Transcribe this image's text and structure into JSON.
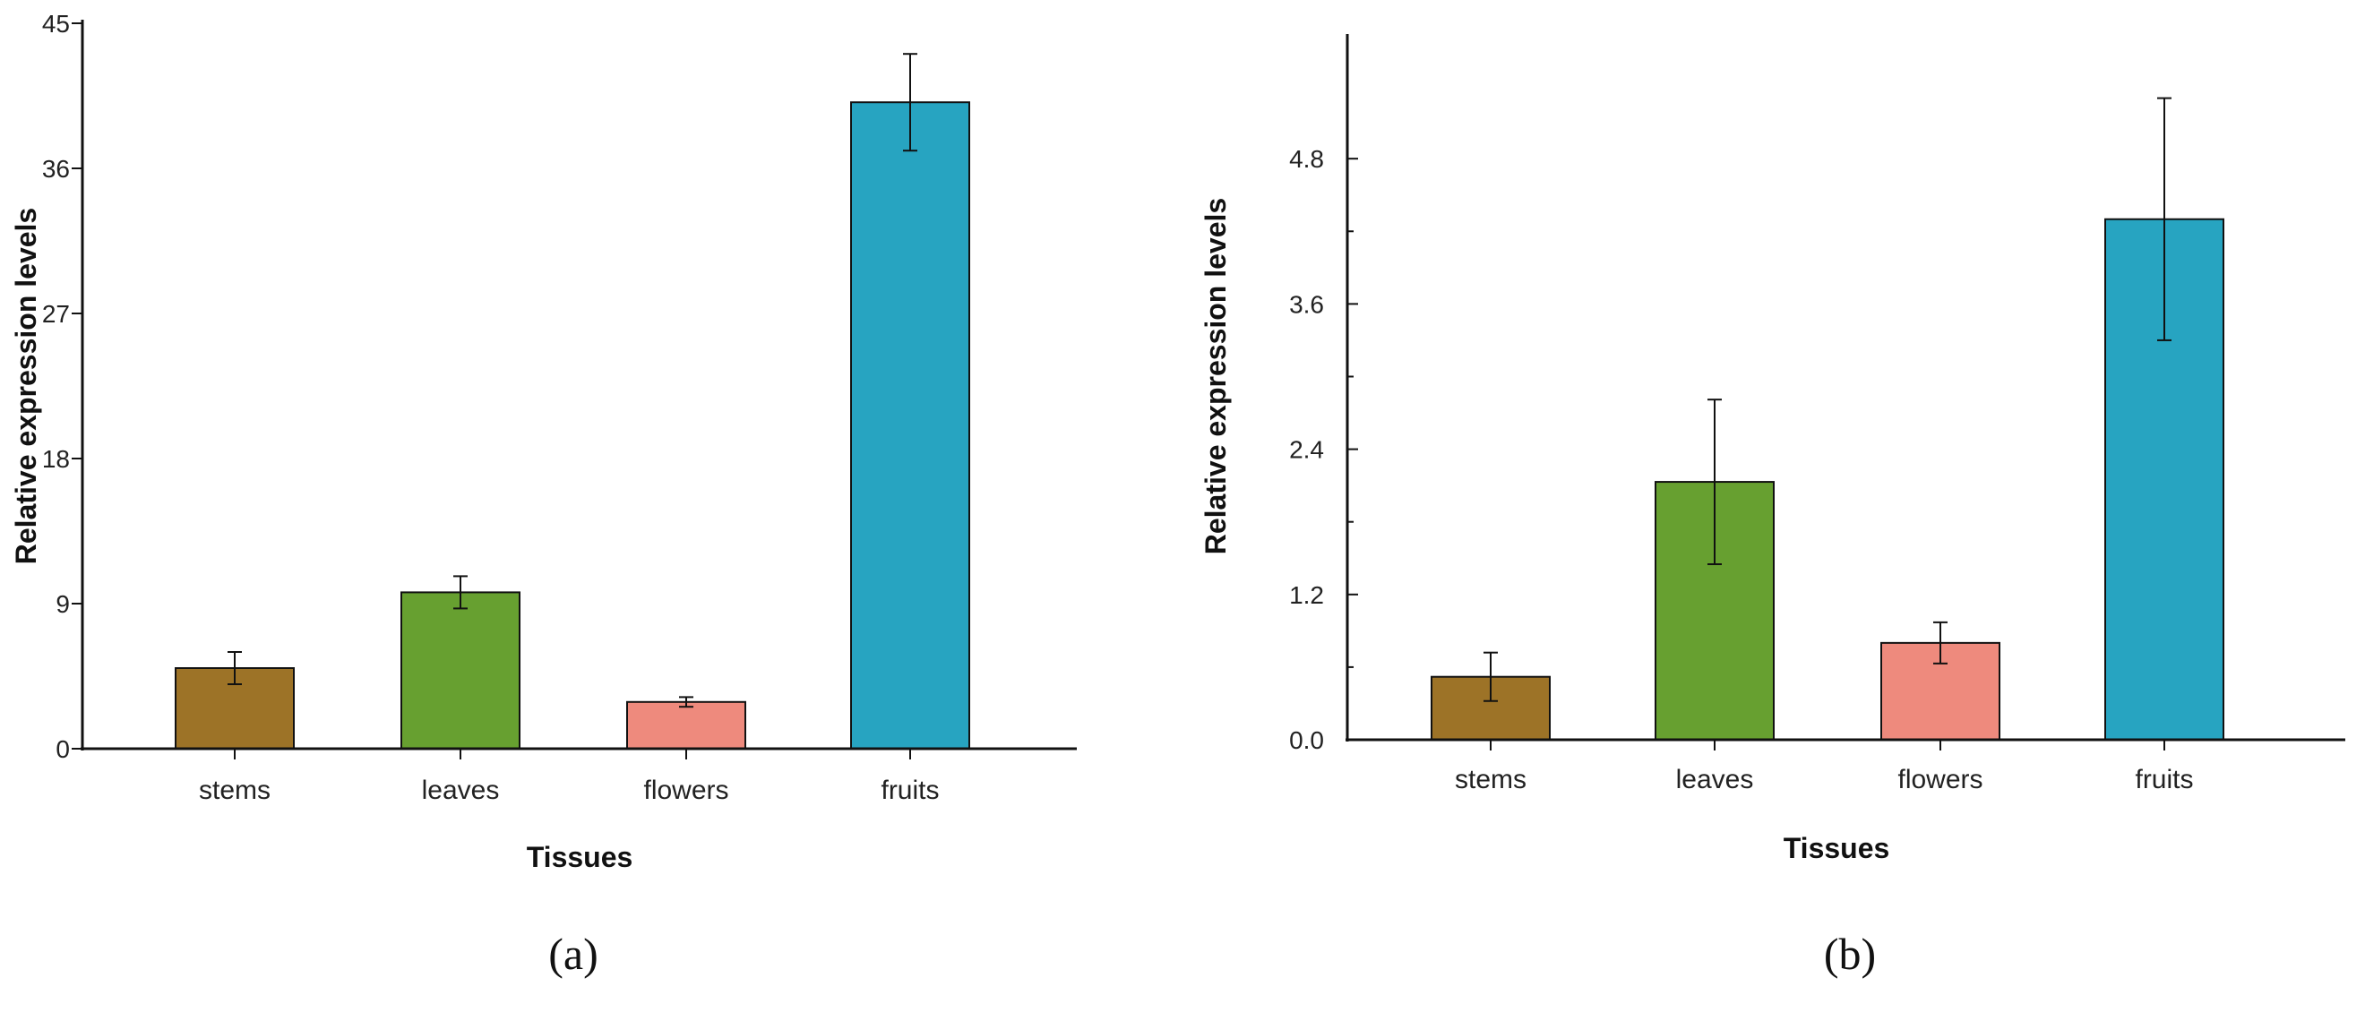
{
  "chart_data": [
    {
      "type": "bar",
      "panel_label": "(a)",
      "xlabel": "Tissues",
      "ylabel": "Relative expression levels",
      "categories": [
        "stems",
        "leaves",
        "flowers",
        "fruits"
      ],
      "values": [
        5.0,
        9.7,
        2.9,
        40.1
      ],
      "errors": [
        1.0,
        1.0,
        0.3,
        3.0
      ],
      "colors": [
        "#9d7327",
        "#67a030",
        "#ee8a7d",
        "#27a4c1"
      ],
      "ylim": [
        0,
        45
      ],
      "yticks": [
        "0",
        "9",
        "18",
        "27",
        "36",
        "45"
      ],
      "grid": false
    },
    {
      "type": "bar",
      "panel_label": "(b)",
      "xlabel": "Tissues",
      "ylabel": "Relative expression levels",
      "categories": [
        "stems",
        "leaves",
        "flowers",
        "fruits"
      ],
      "values": [
        0.52,
        2.13,
        0.8,
        4.3
      ],
      "errors": [
        0.2,
        0.68,
        0.17,
        1.0
      ],
      "colors": [
        "#9d7327",
        "#67a030",
        "#ee8a7d",
        "#27a4c1"
      ],
      "ylim": [
        0,
        5.8
      ],
      "yticks": [
        "0.0",
        "1.2",
        "2.4",
        "3.6",
        "4.8"
      ],
      "grid": false
    }
  ]
}
